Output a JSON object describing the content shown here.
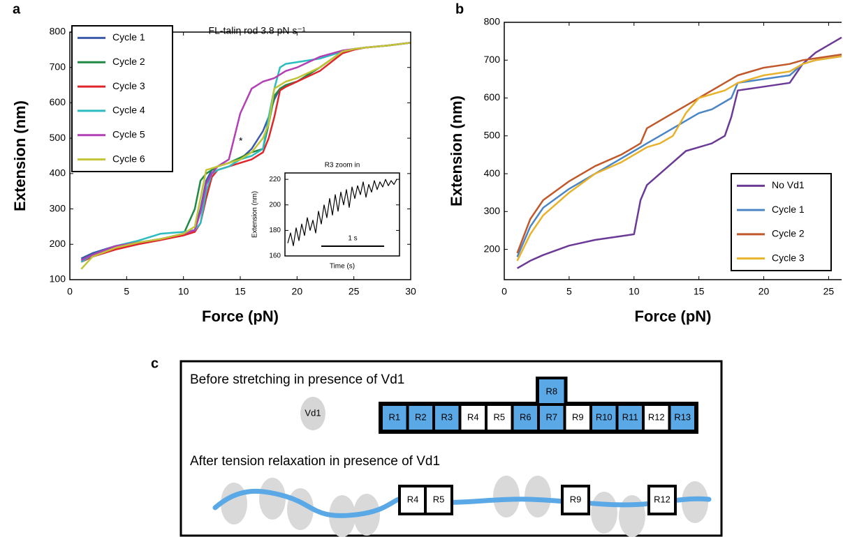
{
  "chart_data": [
    {
      "type": "line",
      "panel": "a",
      "title": "FL-talin rod 3.8 pN s⁻¹",
      "annotation": "*",
      "x_label": "Force (pN)",
      "y_label": "Extension (nm)",
      "x": [
        1,
        2,
        4,
        6,
        8,
        10,
        11,
        11.5,
        12,
        12.5,
        13,
        14,
        15,
        16,
        17,
        17.5,
        18,
        18.5,
        19,
        20,
        22,
        24,
        25,
        26,
        28,
        30
      ],
      "xlim": [
        0,
        30
      ],
      "xticks": [
        0,
        5,
        10,
        15,
        20,
        25,
        30
      ],
      "ylim": [
        100,
        800
      ],
      "yticks": [
        100,
        200,
        300,
        400,
        500,
        600,
        700,
        800
      ],
      "legend": "upper left",
      "series": [
        {
          "name": "Cycle 1",
          "color": "#3b5ba8",
          "values": [
            160,
            175,
            195,
            205,
            215,
            230,
            240,
            300,
            380,
            410,
            420,
            430,
            440,
            470,
            520,
            560,
            610,
            640,
            650,
            660,
            700,
            745,
            752,
            756,
            762,
            770
          ]
        },
        {
          "name": "Cycle 2",
          "color": "#1e8a44",
          "values": [
            155,
            170,
            190,
            205,
            215,
            228,
            300,
            380,
            400,
            410,
            420,
            430,
            445,
            460,
            470,
            540,
            620,
            640,
            650,
            660,
            700,
            745,
            752,
            756,
            762,
            770
          ]
        },
        {
          "name": "Cycle 3",
          "color": "#e0262b",
          "values": [
            150,
            165,
            185,
            200,
            212,
            225,
            235,
            260,
            330,
            390,
            410,
            420,
            430,
            440,
            460,
            500,
            560,
            635,
            645,
            660,
            690,
            740,
            750,
            756,
            762,
            770
          ]
        },
        {
          "name": "Cycle 4",
          "color": "#2bbcc0",
          "values": [
            150,
            170,
            195,
            210,
            230,
            235,
            240,
            260,
            350,
            400,
            410,
            420,
            440,
            450,
            470,
            560,
            640,
            700,
            710,
            715,
            725,
            745,
            752,
            756,
            762,
            770
          ]
        },
        {
          "name": "Cycle 5",
          "color": "#b23fb4",
          "values": [
            155,
            170,
            195,
            205,
            215,
            230,
            240,
            290,
            370,
            400,
            420,
            440,
            570,
            640,
            660,
            665,
            670,
            680,
            690,
            700,
            730,
            748,
            752,
            756,
            762,
            770
          ]
        },
        {
          "name": "Cycle 6",
          "color": "#c2c436",
          "values": [
            130,
            165,
            190,
            205,
            215,
            230,
            250,
            330,
            410,
            415,
            420,
            430,
            440,
            460,
            500,
            540,
            640,
            650,
            660,
            670,
            700,
            745,
            752,
            756,
            762,
            770
          ]
        }
      ]
    },
    {
      "type": "line",
      "title": "R3 zoom in",
      "x_label": "Time (s)",
      "y_label": "Extension (nm)",
      "scale_bar_label": "1 s",
      "ylim": [
        160,
        225
      ],
      "yticks": [
        160,
        180,
        200,
        220
      ],
      "color": "#000000",
      "values": [
        170,
        178,
        168,
        182,
        172,
        185,
        176,
        190,
        180,
        188,
        178,
        195,
        185,
        200,
        190,
        205,
        192,
        208,
        195,
        210,
        200,
        212,
        198,
        214,
        205,
        215,
        208,
        218,
        206,
        216,
        210,
        219,
        212,
        218,
        214,
        220,
        215,
        219,
        216,
        220
      ]
    },
    {
      "type": "line",
      "panel": "b",
      "x_label": "Force (pN)",
      "y_label": "Extension (nm)",
      "x": [
        1,
        2,
        3,
        5,
        7,
        9,
        10,
        10.5,
        11,
        12,
        13,
        14,
        15,
        16,
        17,
        17.5,
        18,
        19,
        20,
        22,
        23,
        24,
        26
      ],
      "xlim": [
        0,
        26
      ],
      "xticks": [
        0,
        5,
        10,
        15,
        20,
        25
      ],
      "ylim": [
        120,
        800
      ],
      "yticks": [
        200,
        300,
        400,
        500,
        600,
        700,
        800
      ],
      "legend": "lower right",
      "series": [
        {
          "name": "No Vd1",
          "color": "#6b3a96",
          "values": [
            150,
            170,
            185,
            210,
            225,
            235,
            240,
            330,
            370,
            400,
            430,
            460,
            470,
            480,
            500,
            550,
            620,
            625,
            630,
            640,
            690,
            720,
            760
          ]
        },
        {
          "name": "Cycle 1",
          "color": "#4a86c6",
          "values": [
            180,
            260,
            310,
            360,
            400,
            440,
            460,
            470,
            480,
            500,
            520,
            540,
            560,
            570,
            590,
            600,
            640,
            645,
            650,
            660,
            690,
            700,
            710
          ]
        },
        {
          "name": "Cycle 2",
          "color": "#c0582a",
          "values": [
            190,
            280,
            330,
            380,
            420,
            450,
            470,
            480,
            520,
            540,
            560,
            580,
            600,
            620,
            640,
            650,
            660,
            670,
            680,
            690,
            700,
            705,
            715
          ]
        },
        {
          "name": "Cycle 3",
          "color": "#e8b22a",
          "values": [
            170,
            240,
            290,
            350,
            400,
            430,
            450,
            460,
            470,
            480,
            500,
            560,
            600,
            610,
            620,
            630,
            640,
            650,
            660,
            670,
            690,
            700,
            710
          ]
        }
      ]
    }
  ],
  "diagram": {
    "panel": "c",
    "before_title": "Before stretching in presence of Vd1",
    "vd1": "Vd1",
    "domains": [
      {
        "label": "R1",
        "color": "#5aa9e6"
      },
      {
        "label": "R2",
        "color": "#5aa9e6"
      },
      {
        "label": "R3",
        "color": "#5aa9e6"
      },
      {
        "label": "R4",
        "color": "#ffffff"
      },
      {
        "label": "R5",
        "color": "#ffffff"
      },
      {
        "label": "R6",
        "color": "#5aa9e6"
      },
      {
        "label": "R7",
        "color": "#5aa9e6"
      },
      {
        "label": "R9",
        "color": "#ffffff"
      },
      {
        "label": "R10",
        "color": "#5aa9e6"
      },
      {
        "label": "R11",
        "color": "#5aa9e6"
      },
      {
        "label": "R12",
        "color": "#ffffff"
      },
      {
        "label": "R13",
        "color": "#5aa9e6"
      }
    ],
    "top_domain": {
      "label": "R8",
      "color": "#5aa9e6"
    },
    "after_title": "After tension relaxation in presence of Vd1",
    "after_domains": [
      "R4",
      "R5",
      "R9",
      "R12"
    ]
  }
}
